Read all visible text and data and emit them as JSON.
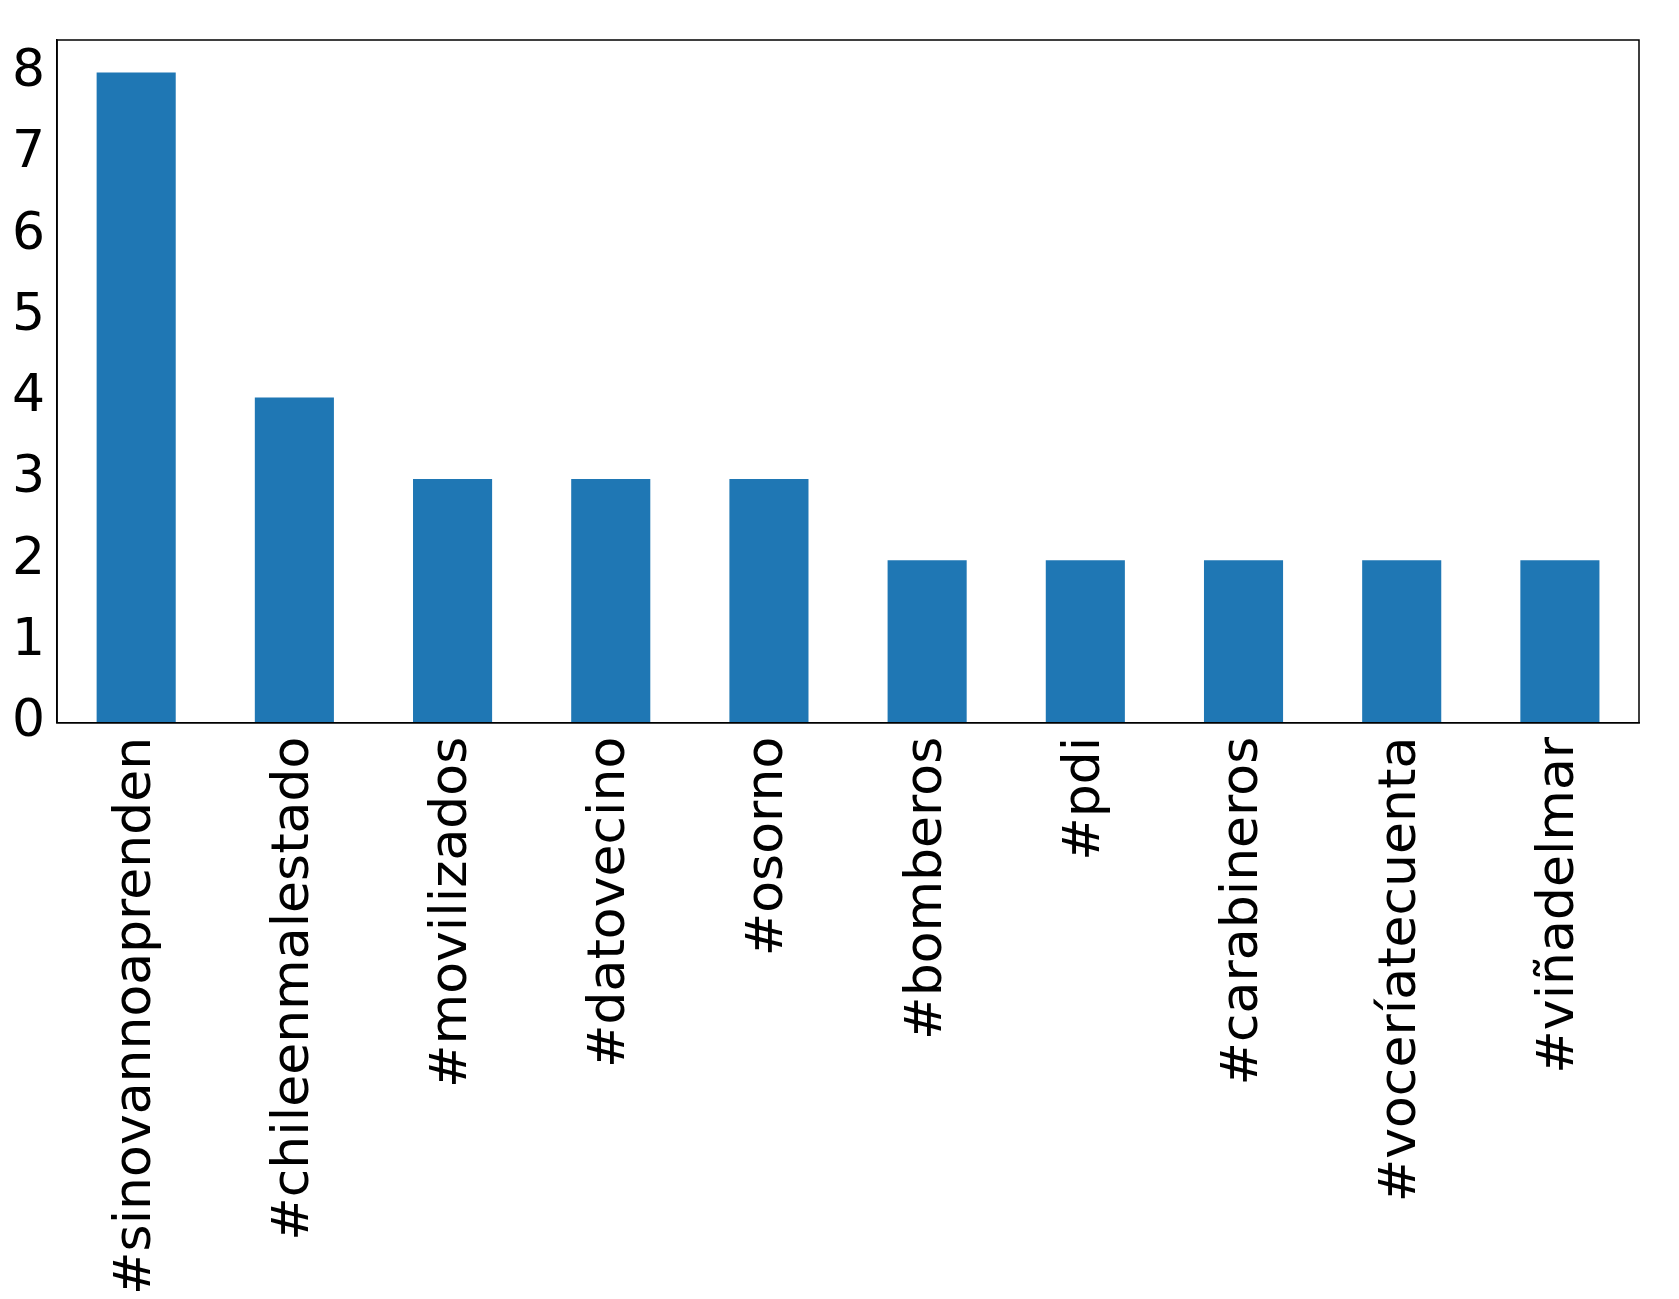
{
  "chart_data": {
    "type": "bar",
    "categories": [
      "#sinovannoaprenden",
      "#chileenmalestado",
      "#movilizados",
      "#datovecino",
      "#osorno",
      "#bomberos",
      "#pdi",
      "#carabineros",
      "#voceríatecuenta",
      "#viñadelmar"
    ],
    "values": [
      8,
      4,
      3,
      3,
      3,
      2,
      2,
      2,
      2,
      2
    ],
    "color": "#1f77b4",
    "ylim": [
      0,
      8.4
    ],
    "yticks": [
      0,
      1,
      2,
      3,
      4,
      5,
      6,
      7,
      8
    ],
    "grid": false,
    "legend": false
  }
}
